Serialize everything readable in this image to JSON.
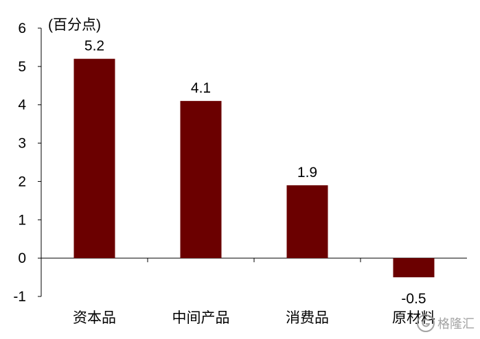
{
  "chart_data": {
    "type": "bar",
    "ylabel": "(百分点)",
    "categories": [
      "资本品",
      "中间产品",
      "消费品",
      "原材料"
    ],
    "values": [
      5.2,
      4.1,
      1.9,
      -0.5
    ],
    "data_labels": [
      "5.2",
      "4.1",
      "1.9",
      "-0.5"
    ],
    "yticks": [
      "-1",
      "0",
      "1",
      "2",
      "3",
      "4",
      "5",
      "6"
    ],
    "ylim": [
      -1,
      6
    ],
    "grid": false,
    "bar_color": "#6b0000"
  },
  "watermark": {
    "text": "格隆汇",
    "icon": "gelonghui-logo-icon"
  }
}
